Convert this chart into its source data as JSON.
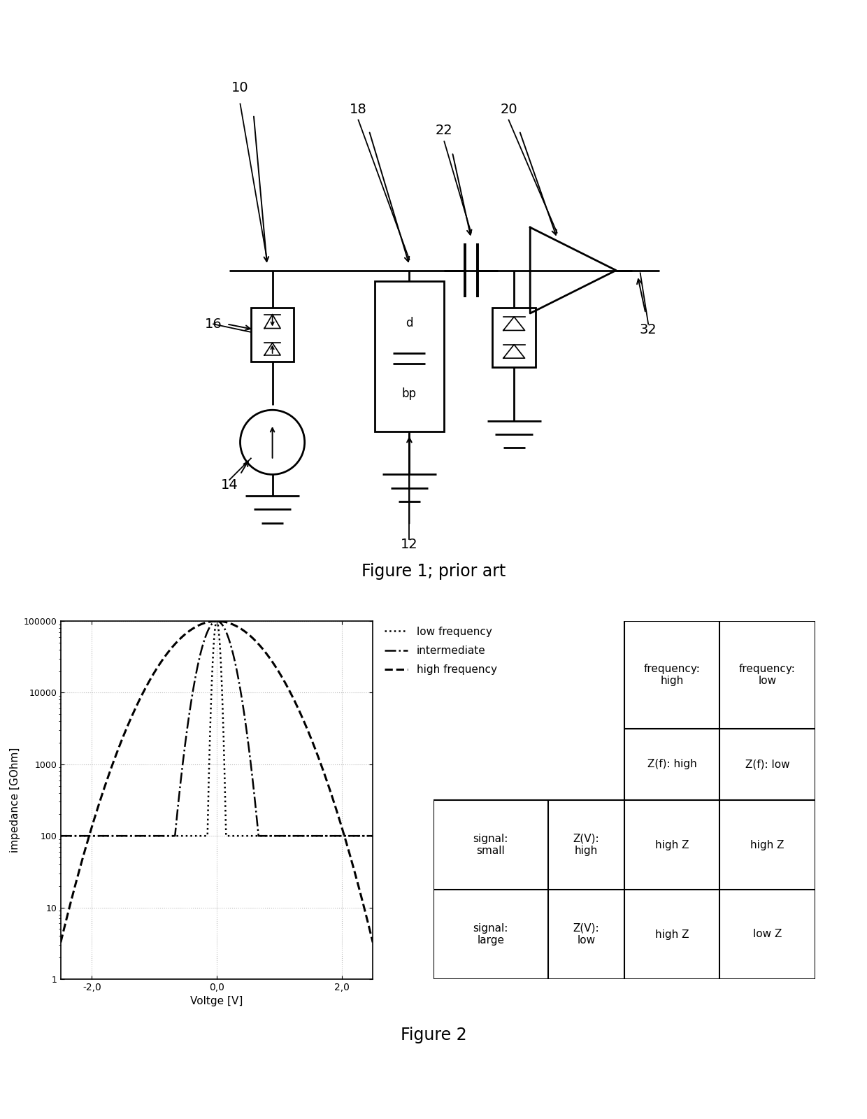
{
  "fig1_title": "Figure 1; prior art",
  "fig2_title": "Figure 2",
  "plot_xlabel": "Voltge [V]",
  "plot_ylabel": "impedance [GOhm]",
  "legend_labels": [
    "low frequency",
    "intermediate",
    "high frequency"
  ],
  "bg_color": "#ffffff",
  "line_color": "#000000",
  "grid_color": "#aaaaaa",
  "label_numbers": [
    "10",
    "18",
    "22",
    "20",
    "16",
    "14",
    "12",
    "32"
  ]
}
